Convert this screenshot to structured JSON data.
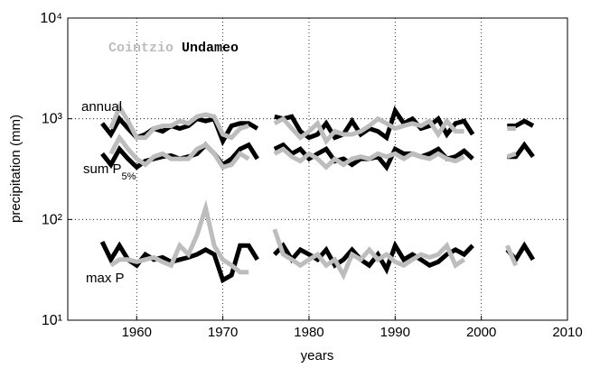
{
  "chart_data": {
    "type": "line",
    "xlabel": "years",
    "ylabel": "precipitation (mm)",
    "log_y": true,
    "grid": true,
    "xlim": [
      1952,
      2010
    ],
    "xticks": [
      1960,
      1970,
      1980,
      1990,
      2000,
      2010
    ],
    "ylim": [
      10,
      10000
    ],
    "yticks": [
      {
        "value": 10,
        "label": "10¹"
      },
      {
        "value": 100,
        "label": "10²"
      },
      {
        "value": 1000,
        "label": "10³"
      },
      {
        "value": 10000,
        "label": "10⁴"
      }
    ],
    "groups": [
      {
        "label": "annual"
      },
      {
        "label": "sum P",
        "sub": "5%"
      },
      {
        "label": "max P"
      }
    ],
    "x": [
      1956,
      1957,
      1958,
      1959,
      1960,
      1961,
      1962,
      1963,
      1964,
      1965,
      1966,
      1967,
      1968,
      1969,
      1970,
      1971,
      1972,
      1973,
      1974,
      1975,
      1976,
      1977,
      1978,
      1979,
      1980,
      1981,
      1982,
      1983,
      1984,
      1985,
      1986,
      1987,
      1988,
      1989,
      1990,
      1991,
      1992,
      1993,
      1994,
      1995,
      1996,
      1997,
      1998,
      1999,
      2000,
      2001,
      2002,
      2003,
      2004,
      2005,
      2006
    ],
    "series": [
      {
        "name": "Undameo",
        "color": "#000000",
        "values": [
          [
            900,
            700,
            1000,
            800,
            650,
            700,
            800,
            750,
            850,
            800,
            850,
            1000,
            950,
            1000,
            600,
            850,
            900,
            900,
            800,
            null,
            1050,
            1000,
            1050,
            750,
            650,
            700,
            900,
            650,
            700,
            950,
            700,
            800,
            750,
            650,
            1200,
            900,
            1000,
            800,
            850,
            1000,
            700,
            900,
            950,
            700,
            null,
            null,
            null,
            850,
            850,
            950,
            850
          ],
          [
            450,
            350,
            500,
            400,
            330,
            380,
            400,
            420,
            430,
            400,
            420,
            450,
            550,
            450,
            350,
            400,
            500,
            550,
            400,
            null,
            500,
            550,
            450,
            500,
            400,
            450,
            500,
            380,
            400,
            350,
            400,
            400,
            420,
            330,
            500,
            450,
            450,
            420,
            450,
            500,
            400,
            420,
            480,
            400,
            null,
            null,
            null,
            420,
            420,
            550,
            420
          ],
          [
            60,
            40,
            55,
            40,
            35,
            45,
            40,
            42,
            38,
            40,
            42,
            45,
            50,
            45,
            25,
            28,
            55,
            55,
            40,
            null,
            45,
            55,
            40,
            50,
            45,
            40,
            50,
            35,
            40,
            50,
            40,
            35,
            45,
            32,
            55,
            40,
            45,
            40,
            35,
            38,
            45,
            50,
            45,
            55,
            null,
            null,
            null,
            50,
            40,
            55,
            40
          ]
        ]
      },
      {
        "name": "Cointzio",
        "color": "#bdbdbd",
        "values": [
          [
            null,
            800,
            1300,
            950,
            650,
            650,
            800,
            850,
            850,
            950,
            900,
            1050,
            1100,
            1050,
            700,
            650,
            800,
            850,
            null,
            null,
            900,
            1000,
            800,
            650,
            750,
            900,
            600,
            750,
            700,
            700,
            750,
            850,
            1000,
            900,
            800,
            850,
            900,
            850,
            950,
            700,
            950,
            750,
            750,
            null,
            null,
            null,
            null,
            800,
            800,
            null,
            null
          ],
          [
            null,
            450,
            650,
            500,
            400,
            350,
            420,
            450,
            400,
            400,
            400,
            500,
            550,
            450,
            330,
            350,
            450,
            400,
            null,
            null,
            450,
            500,
            420,
            380,
            450,
            400,
            330,
            400,
            350,
            400,
            420,
            400,
            450,
            420,
            450,
            400,
            450,
            420,
            400,
            450,
            400,
            380,
            420,
            null,
            null,
            null,
            null,
            420,
            450,
            null,
            null
          ],
          [
            null,
            35,
            40,
            40,
            38,
            40,
            42,
            38,
            35,
            55,
            45,
            70,
            130,
            55,
            40,
            35,
            30,
            30,
            null,
            null,
            80,
            45,
            40,
            35,
            40,
            45,
            35,
            40,
            28,
            45,
            40,
            50,
            40,
            45,
            38,
            35,
            40,
            45,
            42,
            45,
            55,
            35,
            40,
            null,
            null,
            null,
            null,
            55,
            35,
            null,
            null
          ]
        ]
      }
    ]
  }
}
